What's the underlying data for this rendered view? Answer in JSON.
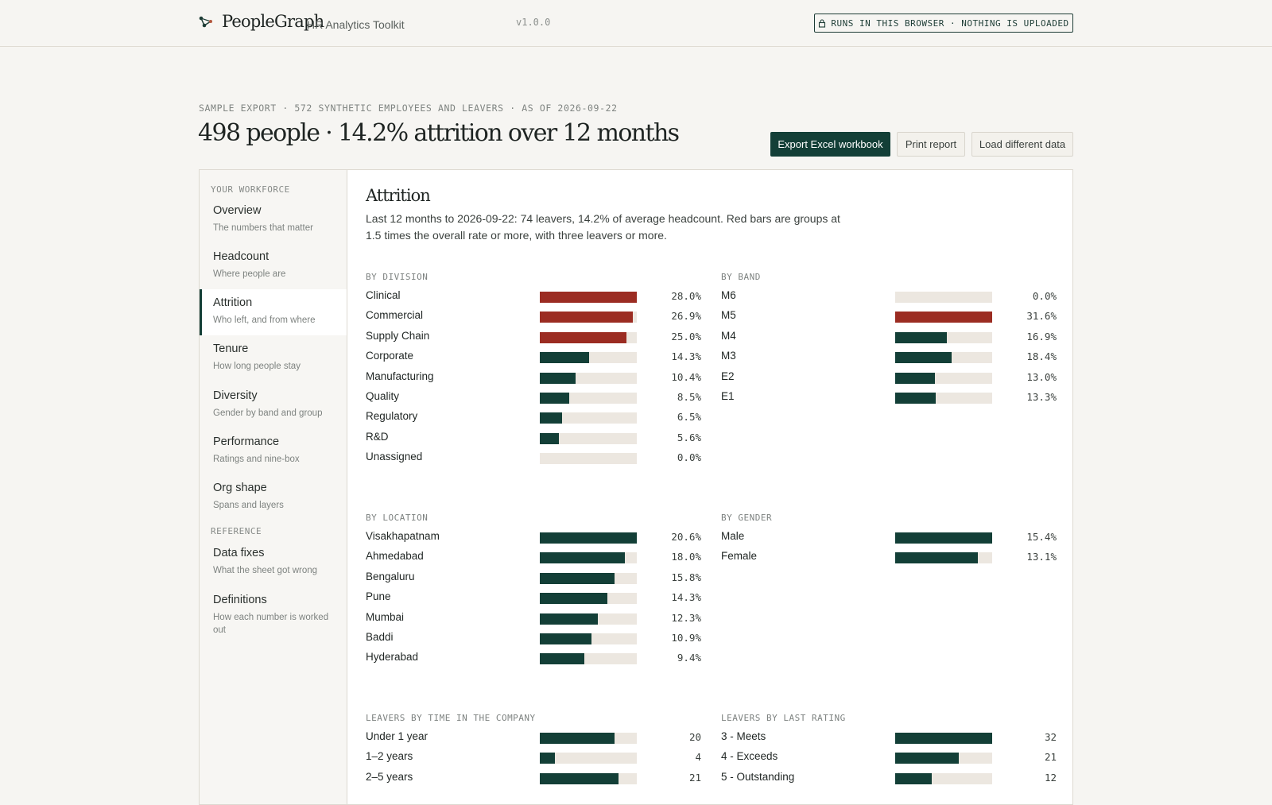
{
  "app": {
    "name": "PeopleGraph",
    "subtitle": "HR Analytics Toolkit",
    "version": "v1.0.0",
    "local_badge": "RUNS IN THIS BROWSER · NOTHING IS UPLOADED"
  },
  "header": {
    "eyebrow": "SAMPLE EXPORT · 572 SYNTHETIC EMPLOYEES AND LEAVERS · AS OF 2026-09-22",
    "title": "498 people · 14.2% attrition over 12 months",
    "actions": {
      "export": "Export Excel workbook",
      "print": "Print report",
      "load": "Load different data"
    }
  },
  "sidebar": {
    "section_workforce": "YOUR WORKFORCE",
    "section_reference": "REFERENCE",
    "items": [
      {
        "label": "Overview",
        "desc": "The numbers that matter"
      },
      {
        "label": "Headcount",
        "desc": "Where people are"
      },
      {
        "label": "Attrition",
        "desc": "Who left, and from where",
        "active": true
      },
      {
        "label": "Tenure",
        "desc": "How long people stay"
      },
      {
        "label": "Diversity",
        "desc": "Gender by band and group"
      },
      {
        "label": "Performance",
        "desc": "Ratings and nine-box"
      },
      {
        "label": "Org shape",
        "desc": "Spans and layers"
      }
    ],
    "reference_items": [
      {
        "label": "Data fixes",
        "desc": "What the sheet got wrong"
      },
      {
        "label": "Definitions",
        "desc": "How each number is worked out"
      }
    ]
  },
  "section": {
    "title": "Attrition",
    "description": "Last 12 months to 2026-09-22: 74 leavers, 14.2% of average headcount. Red bars are groups at 1.5 times the overall rate or more, with three leavers or more."
  },
  "colors": {
    "normal": "#133f37",
    "high": "#9b2c22",
    "track": "#ece7e0"
  },
  "groups": {
    "division": {
      "title": "BY DIVISION",
      "rows": [
        {
          "label": "Clinical",
          "value": "28.0%",
          "fill": 1.0,
          "high": true
        },
        {
          "label": "Commercial",
          "value": "26.9%",
          "fill": 0.96,
          "high": true
        },
        {
          "label": "Supply Chain",
          "value": "25.0%",
          "fill": 0.893,
          "high": true
        },
        {
          "label": "Corporate",
          "value": "14.3%",
          "fill": 0.511,
          "high": false
        },
        {
          "label": "Manufacturing",
          "value": "10.4%",
          "fill": 0.371,
          "high": false
        },
        {
          "label": "Quality",
          "value": "8.5%",
          "fill": 0.304,
          "high": false
        },
        {
          "label": "Regulatory",
          "value": "6.5%",
          "fill": 0.232,
          "high": false
        },
        {
          "label": "R&D",
          "value": "5.6%",
          "fill": 0.2,
          "high": false
        },
        {
          "label": "Unassigned",
          "value": "0.0%",
          "fill": 0.0,
          "high": false
        }
      ]
    },
    "band": {
      "title": "BY BAND",
      "rows": [
        {
          "label": "M6",
          "value": "0.0%",
          "fill": 0.0,
          "high": false
        },
        {
          "label": "M5",
          "value": "31.6%",
          "fill": 1.0,
          "high": true
        },
        {
          "label": "M4",
          "value": "16.9%",
          "fill": 0.535,
          "high": false
        },
        {
          "label": "M3",
          "value": "18.4%",
          "fill": 0.582,
          "high": false
        },
        {
          "label": "E2",
          "value": "13.0%",
          "fill": 0.411,
          "high": false
        },
        {
          "label": "E1",
          "value": "13.3%",
          "fill": 0.421,
          "high": false
        }
      ]
    },
    "location": {
      "title": "BY LOCATION",
      "rows": [
        {
          "label": "Visakhapatnam",
          "value": "20.6%",
          "fill": 1.0,
          "high": false
        },
        {
          "label": "Ahmedabad",
          "value": "18.0%",
          "fill": 0.874,
          "high": false
        },
        {
          "label": "Bengaluru",
          "value": "15.8%",
          "fill": 0.767,
          "high": false
        },
        {
          "label": "Pune",
          "value": "14.3%",
          "fill": 0.694,
          "high": false
        },
        {
          "label": "Mumbai",
          "value": "12.3%",
          "fill": 0.597,
          "high": false
        },
        {
          "label": "Baddi",
          "value": "10.9%",
          "fill": 0.529,
          "high": false
        },
        {
          "label": "Hyderabad",
          "value": "9.4%",
          "fill": 0.456,
          "high": false
        }
      ]
    },
    "gender": {
      "title": "BY GENDER",
      "rows": [
        {
          "label": "Male",
          "value": "15.4%",
          "fill": 1.0,
          "high": false
        },
        {
          "label": "Female",
          "value": "13.1%",
          "fill": 0.851,
          "high": false
        }
      ]
    },
    "tenure": {
      "title": "LEAVERS BY TIME IN THE COMPANY",
      "rows": [
        {
          "label": "Under 1 year",
          "value": "20",
          "fill": 0.769,
          "high": false
        },
        {
          "label": "1–2 years",
          "value": "4",
          "fill": 0.154,
          "high": false
        },
        {
          "label": "2–5 years",
          "value": "21",
          "fill": 0.808,
          "high": false
        }
      ]
    },
    "rating": {
      "title": "LEAVERS BY LAST RATING",
      "rows": [
        {
          "label": "3 - Meets",
          "value": "32",
          "fill": 1.0,
          "high": false
        },
        {
          "label": "4 - Exceeds",
          "value": "21",
          "fill": 0.656,
          "high": false
        },
        {
          "label": "5 - Outstanding",
          "value": "12",
          "fill": 0.375,
          "high": false
        }
      ]
    }
  }
}
